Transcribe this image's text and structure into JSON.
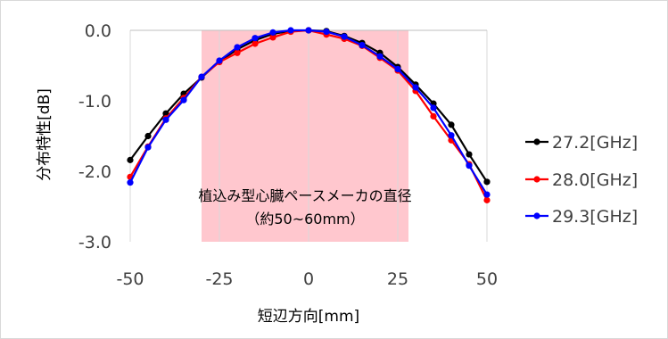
{
  "chart_data": {
    "type": "line",
    "xlabel": "短辺方向[mm]",
    "ylabel": "分布特性[dB]",
    "xlim": [
      -50,
      50
    ],
    "ylim": [
      -3.0,
      0.0
    ],
    "x_ticks": [
      "-50",
      "-25",
      "0",
      "25",
      "50"
    ],
    "x_tick_values": [
      -50,
      -25,
      0,
      25,
      50
    ],
    "y_ticks": [
      "0.0",
      "-1.0",
      "-2.0",
      "-3.0"
    ],
    "y_tick_values": [
      0,
      -1,
      -2,
      -3
    ],
    "grid": "vertical",
    "legend_position": "right",
    "highlight": {
      "x_from": -30,
      "x_to": 28,
      "color": "#ffc7ce"
    },
    "annotation": [
      "植込み型心臓ペースメーカの直径",
      "（約50~60mm）"
    ],
    "x": [
      -50,
      -45,
      -40,
      -35,
      -30,
      -25,
      -20,
      -15,
      -10,
      -5,
      0,
      5,
      10,
      15,
      20,
      25,
      30,
      35,
      40,
      45,
      50
    ],
    "series": [
      {
        "name": "27.2[GHz]",
        "color": "#000000",
        "values": [
          -1.84,
          -1.5,
          -1.18,
          -0.9,
          -0.67,
          -0.44,
          -0.27,
          -0.14,
          -0.05,
          -0.01,
          0.0,
          -0.01,
          -0.08,
          -0.18,
          -0.32,
          -0.52,
          -0.77,
          -1.04,
          -1.34,
          -1.76,
          -2.15
        ]
      },
      {
        "name": "28.0[GHz]",
        "color": "#ff0000",
        "values": [
          -2.08,
          -1.65,
          -1.25,
          -0.96,
          -0.66,
          -0.45,
          -0.32,
          -0.19,
          -0.1,
          -0.02,
          0.0,
          -0.06,
          -0.12,
          -0.22,
          -0.39,
          -0.57,
          -0.86,
          -1.22,
          -1.56,
          -1.9,
          -2.41
        ]
      },
      {
        "name": "29.3[GHz]",
        "color": "#0000ff",
        "values": [
          -2.16,
          -1.66,
          -1.27,
          -0.99,
          -0.66,
          -0.43,
          -0.24,
          -0.11,
          -0.03,
          0.0,
          0.0,
          -0.02,
          -0.09,
          -0.21,
          -0.37,
          -0.55,
          -0.81,
          -1.1,
          -1.49,
          -1.92,
          -2.33
        ]
      }
    ]
  }
}
